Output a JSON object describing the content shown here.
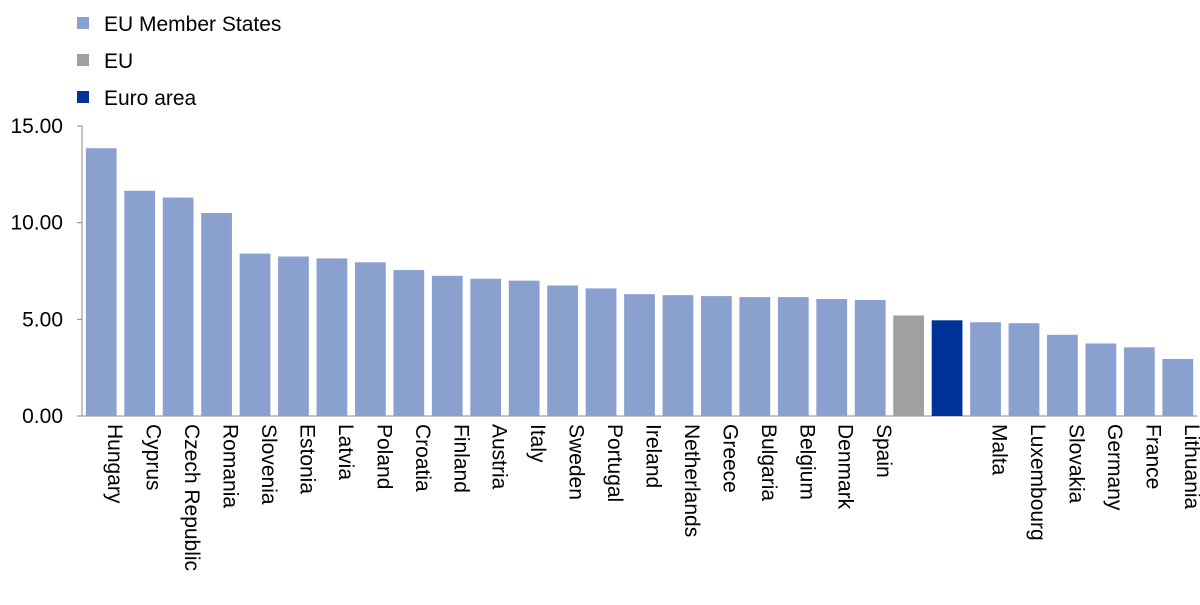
{
  "chart_data": {
    "type": "bar",
    "title": "",
    "xlabel": "",
    "ylabel": "",
    "ylim": [
      0,
      15
    ],
    "yticks": [
      0,
      5,
      10,
      15
    ],
    "ytick_labels": [
      "0.00",
      "5.00",
      "10.00",
      "15.00"
    ],
    "grid": false,
    "legend_position": "top-left",
    "legend": [
      {
        "key": "member",
        "label": "EU Member States",
        "color": "#8aa0cf"
      },
      {
        "key": "eu",
        "label": "EU",
        "color": "#a0a0a0"
      },
      {
        "key": "euro",
        "label": "Euro area",
        "color": "#003399"
      }
    ],
    "bars": [
      {
        "label": "Hungary",
        "value": 13.85,
        "group": "member"
      },
      {
        "label": "Cyprus",
        "value": 11.65,
        "group": "member"
      },
      {
        "label": "Czech Republic",
        "value": 11.3,
        "group": "member"
      },
      {
        "label": "Romania",
        "value": 10.5,
        "group": "member"
      },
      {
        "label": "Slovenia",
        "value": 8.4,
        "group": "member"
      },
      {
        "label": "Estonia",
        "value": 8.25,
        "group": "member"
      },
      {
        "label": "Latvia",
        "value": 8.15,
        "group": "member"
      },
      {
        "label": "Poland",
        "value": 7.95,
        "group": "member"
      },
      {
        "label": "Croatia",
        "value": 7.55,
        "group": "member"
      },
      {
        "label": "Finland",
        "value": 7.25,
        "group": "member"
      },
      {
        "label": "Austria",
        "value": 7.1,
        "group": "member"
      },
      {
        "label": "Italy",
        "value": 7.0,
        "group": "member"
      },
      {
        "label": "Sweden",
        "value": 6.75,
        "group": "member"
      },
      {
        "label": "Portugal",
        "value": 6.6,
        "group": "member"
      },
      {
        "label": "Ireland",
        "value": 6.3,
        "group": "member"
      },
      {
        "label": "Netherlands",
        "value": 6.25,
        "group": "member"
      },
      {
        "label": "Greece",
        "value": 6.2,
        "group": "member"
      },
      {
        "label": "Bulgaria",
        "value": 6.15,
        "group": "member"
      },
      {
        "label": "Belgium",
        "value": 6.15,
        "group": "member"
      },
      {
        "label": "Denmark",
        "value": 6.05,
        "group": "member"
      },
      {
        "label": "Spain",
        "value": 6.0,
        "group": "member"
      },
      {
        "label": "",
        "value": 5.2,
        "group": "eu"
      },
      {
        "label": "",
        "value": 4.95,
        "group": "euro"
      },
      {
        "label": "Malta",
        "value": 4.85,
        "group": "member"
      },
      {
        "label": "Luxembourg",
        "value": 4.8,
        "group": "member"
      },
      {
        "label": "Slovakia",
        "value": 4.2,
        "group": "member"
      },
      {
        "label": "Germany",
        "value": 3.75,
        "group": "member"
      },
      {
        "label": "France",
        "value": 3.55,
        "group": "member"
      },
      {
        "label": "Lithuania",
        "value": 2.95,
        "group": "member"
      }
    ]
  }
}
